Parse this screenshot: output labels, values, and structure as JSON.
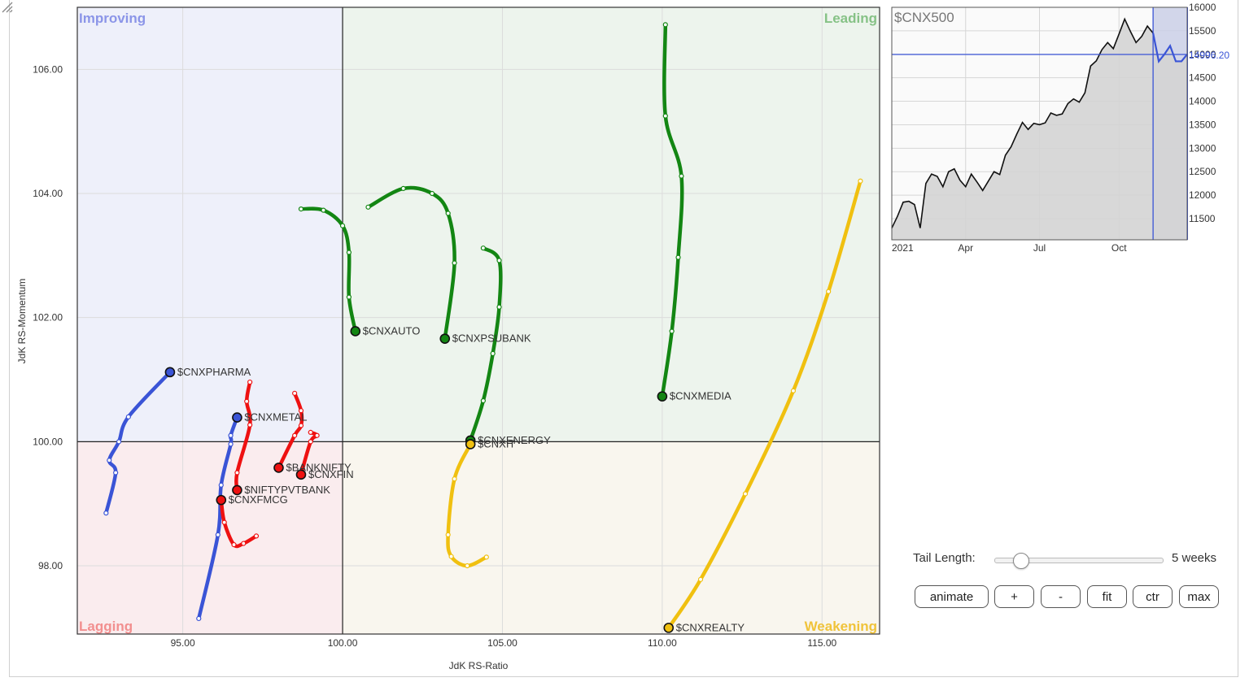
{
  "chart_data": [
    {
      "type": "scatter",
      "subtype": "relative-rotation-graph",
      "xlabel": "JdK RS-Ratio",
      "ylabel": "JdK RS-Momentum",
      "xlim": [
        91.7,
        116.8
      ],
      "ylim": [
        96.9,
        107.0
      ],
      "x_ticks": [
        "95.00",
        "100.00",
        "105.00",
        "110.00",
        "115.00"
      ],
      "y_ticks": [
        "98.00",
        "100.00",
        "102.00",
        "104.00",
        "106.00"
      ],
      "quadrants": {
        "top_left": "Improving",
        "top_right": "Leading",
        "bottom_left": "Lagging",
        "bottom_right": "Weakening"
      },
      "grid": true,
      "series": [
        {
          "name": "$CNXPHARMA",
          "color": "#3a54d6",
          "points": [
            [
              92.6,
              98.85
            ],
            [
              92.9,
              99.5
            ],
            [
              92.7,
              99.7
            ],
            [
              93.0,
              100.0
            ],
            [
              93.3,
              100.4
            ],
            [
              94.6,
              101.12
            ]
          ]
        },
        {
          "name": "$CNXMETAL",
          "color": "#3a54d6",
          "points": [
            [
              95.5,
              97.15
            ],
            [
              96.1,
              98.5
            ],
            [
              96.2,
              99.3
            ],
            [
              96.5,
              99.96
            ],
            [
              96.5,
              100.1
            ],
            [
              96.7,
              100.39
            ]
          ]
        },
        {
          "name": "$CNXFMCG",
          "color": "#ee1111",
          "points": [
            [
              97.3,
              98.48
            ],
            [
              96.9,
              98.36
            ],
            [
              96.6,
              98.34
            ],
            [
              96.3,
              98.7
            ],
            [
              96.2,
              99.06
            ]
          ]
        },
        {
          "name": "$NIFTYPVTBANK",
          "color": "#ee1111",
          "points": [
            [
              97.1,
              100.96
            ],
            [
              97.0,
              100.65
            ],
            [
              97.1,
              100.27
            ],
            [
              96.7,
              99.5
            ],
            [
              96.7,
              99.22
            ]
          ]
        },
        {
          "name": "$BANKNIFTY",
          "color": "#ee1111",
          "points": [
            [
              98.5,
              100.78
            ],
            [
              98.7,
              100.5
            ],
            [
              98.7,
              100.26
            ],
            [
              98.5,
              100.1
            ],
            [
              98.0,
              99.58
            ]
          ]
        },
        {
          "name": "$CNXFIN",
          "color": "#ee1111",
          "points": [
            [
              99.0,
              100.15
            ],
            [
              99.2,
              100.1
            ],
            [
              99.0,
              100.0
            ],
            [
              98.7,
              99.47
            ]
          ]
        },
        {
          "name": "$CNXAUTO",
          "color": "#138613",
          "points": [
            [
              98.7,
              103.75
            ],
            [
              99.4,
              103.73
            ],
            [
              100.0,
              103.48
            ],
            [
              100.2,
              103.05
            ],
            [
              100.2,
              102.33
            ],
            [
              100.4,
              101.78
            ]
          ]
        },
        {
          "name": "$CNXPSUBANK",
          "color": "#138613",
          "points": [
            [
              100.8,
              103.78
            ],
            [
              101.9,
              104.08
            ],
            [
              102.8,
              104.0
            ],
            [
              103.3,
              103.68
            ],
            [
              103.5,
              102.88
            ],
            [
              103.2,
              101.66
            ]
          ]
        },
        {
          "name": "$CNXENERGY",
          "color": "#138613",
          "points": [
            [
              104.4,
              103.12
            ],
            [
              104.9,
              102.92
            ],
            [
              104.9,
              102.17
            ],
            [
              104.7,
              101.42
            ],
            [
              104.4,
              100.66
            ],
            [
              104.0,
              100.02
            ]
          ]
        },
        {
          "name": "$CNXIT",
          "color": "#f0c010",
          "points": [
            [
              104.5,
              98.14
            ],
            [
              103.9,
              98.0
            ],
            [
              103.4,
              98.15
            ],
            [
              103.3,
              98.5
            ],
            [
              103.5,
              99.4
            ],
            [
              104.0,
              99.96
            ]
          ]
        },
        {
          "name": "$CNXMEDIA",
          "color": "#138613",
          "points": [
            [
              110.1,
              106.72
            ],
            [
              110.1,
              105.25
            ],
            [
              110.6,
              104.28
            ],
            [
              110.5,
              102.97
            ],
            [
              110.3,
              101.78
            ],
            [
              110.0,
              100.73
            ]
          ]
        },
        {
          "name": "$CNXREALTY",
          "color": "#f0c010",
          "points": [
            [
              116.2,
              104.2
            ],
            [
              115.2,
              102.42
            ],
            [
              114.1,
              100.82
            ],
            [
              112.6,
              99.16
            ],
            [
              111.2,
              97.78
            ],
            [
              110.2,
              97.0
            ]
          ]
        }
      ]
    },
    {
      "type": "area",
      "title": "$CNX500",
      "x_ticks": [
        "2021",
        "Apr",
        "Jul",
        "Oct"
      ],
      "y_ticks": [
        "11500",
        "12000",
        "12500",
        "13000",
        "13500",
        "14000",
        "14500",
        "15000",
        "15500",
        "16000"
      ],
      "ylim": [
        11050,
        16000
      ],
      "current_value_label": "14996.20",
      "current_value": 14996.2,
      "x_index_range": [
        0,
        52
      ],
      "highlight_start_index": 46,
      "grid": true,
      "values": [
        11300,
        11550,
        11850,
        11870,
        11800,
        11300,
        12250,
        12450,
        12400,
        12180,
        12500,
        12560,
        12320,
        12180,
        12450,
        12280,
        12100,
        12300,
        12500,
        12440,
        12850,
        13030,
        13300,
        13550,
        13400,
        13530,
        13500,
        13540,
        13750,
        13700,
        13730,
        13950,
        14050,
        13980,
        14180,
        14750,
        14860,
        15100,
        15250,
        15120,
        15430,
        15750,
        15490,
        15250,
        15380,
        15600,
        15450,
        14850,
        15000,
        15180,
        14850,
        14850,
        15000
      ]
    }
  ],
  "controls": {
    "tail_length_label": "Tail Length:",
    "tail_length_value": "5 weeks",
    "tail_length_level": 0.15,
    "buttons": {
      "animate": "animate",
      "plus": "+",
      "minus": "-",
      "fit": "fit",
      "ctr": "ctr",
      "max": "max"
    }
  }
}
